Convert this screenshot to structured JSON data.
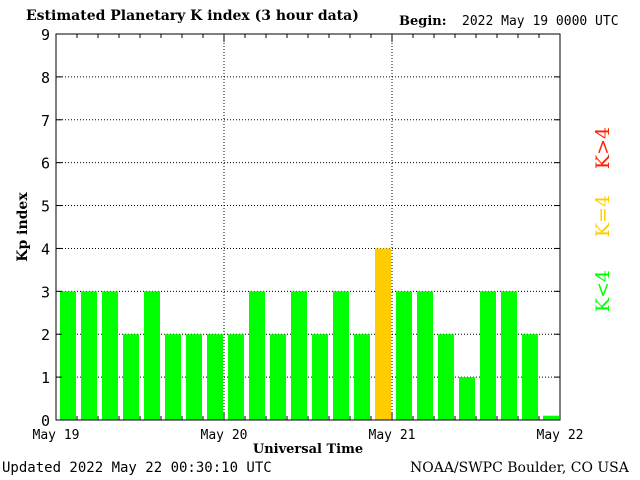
{
  "header": {
    "title": "Estimated Planetary K index (3 hour data)",
    "begin_label": "Begin:",
    "begin_value": "2022 May 19 0000 UTC"
  },
  "footer": {
    "updated": "Updated 2022 May 22 00:30:10 UTC",
    "credit": "NOAA/SWPC Boulder, CO USA"
  },
  "legend": {
    "above": "K>4",
    "equal": "K=4",
    "below": "K<4"
  },
  "colors": {
    "below": "#00ff00",
    "equal": "#ffcc00",
    "above": "#ff2200",
    "axis": "#000000"
  },
  "chart_data": {
    "type": "bar",
    "xlabel": "Universal Time",
    "ylabel": "Kp index",
    "ylim": [
      0,
      9
    ],
    "yticks": [
      0,
      1,
      2,
      3,
      4,
      5,
      6,
      7,
      8,
      9
    ],
    "xticks": [
      "May 19",
      "May 20",
      "May 21",
      "May 22"
    ],
    "interval_hours": 3,
    "grid": true,
    "values": [
      3,
      3,
      3,
      2,
      3,
      2,
      2,
      2,
      2,
      3,
      2,
      3,
      2,
      3,
      2,
      4,
      3,
      3,
      2,
      1,
      3,
      3,
      2,
      0.1
    ]
  }
}
